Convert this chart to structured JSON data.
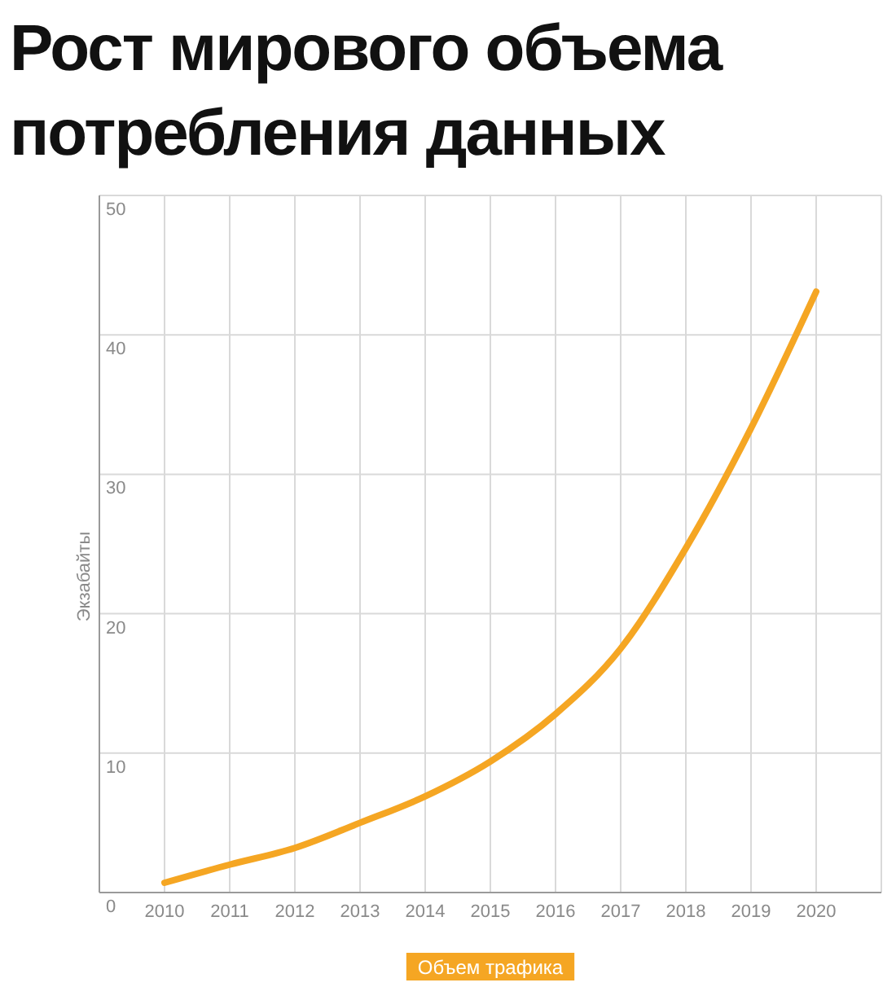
{
  "chart_data": {
    "type": "line",
    "title": "Рост мирового объема потребления данных",
    "ylabel": "Экзабайты",
    "x": [
      2010,
      2011,
      2012,
      2013,
      2014,
      2015,
      2016,
      2017,
      2018,
      2019,
      2020
    ],
    "series": [
      {
        "name": "Объем трафика",
        "color": "#f5a623",
        "values": [
          0.7,
          2.0,
          3.2,
          5.0,
          6.9,
          9.4,
          12.8,
          17.5,
          24.7,
          33.3,
          43.1
        ]
      }
    ],
    "xlim": [
      2009,
      2021
    ],
    "xticks": [
      2010,
      2011,
      2012,
      2013,
      2014,
      2015,
      2016,
      2017,
      2018,
      2019,
      2020
    ],
    "ylim": [
      0,
      50
    ],
    "yticks": [
      0,
      10,
      20,
      30,
      40,
      50
    ],
    "grid": true,
    "legend": "bottom",
    "marker": "none",
    "line_style": "solid"
  }
}
